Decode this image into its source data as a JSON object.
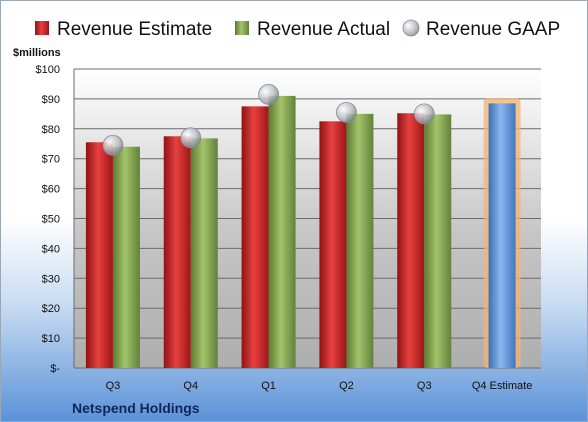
{
  "chart_data": {
    "type": "bar",
    "title": "",
    "unit_label": "$millions",
    "company": "Netspend Holdings",
    "ylim": [
      0,
      100
    ],
    "y_ticks": [
      {
        "value": 0,
        "label": "$-"
      },
      {
        "value": 10,
        "label": "$10"
      },
      {
        "value": 20,
        "label": "$20"
      },
      {
        "value": 30,
        "label": "$30"
      },
      {
        "value": 40,
        "label": "$40"
      },
      {
        "value": 50,
        "label": "$50"
      },
      {
        "value": 60,
        "label": "$60"
      },
      {
        "value": 70,
        "label": "$70"
      },
      {
        "value": 80,
        "label": "$80"
      },
      {
        "value": 90,
        "label": "$90"
      },
      {
        "value": 100,
        "label": "$100"
      }
    ],
    "categories": [
      "Q3",
      "Q4",
      "Q1",
      "Q2",
      "Q3",
      "Q4 Estimate"
    ],
    "grid": true,
    "legend_position": "top",
    "series": [
      {
        "name": "Revenue Estimate",
        "kind": "bar",
        "color": "#d42a2a",
        "values": [
          75.5,
          77.5,
          87.5,
          82.5,
          85.2,
          null
        ]
      },
      {
        "name": "Revenue Actual",
        "kind": "bar",
        "color": "#8db05a",
        "values": [
          74.0,
          76.8,
          91.0,
          85.0,
          84.8,
          null
        ]
      },
      {
        "name": "Revenue GAAP",
        "kind": "marker",
        "color": "#b9bcc3",
        "values": [
          74.5,
          77.0,
          91.5,
          85.5,
          85.0,
          null
        ]
      },
      {
        "name": "",
        "kind": "bar",
        "color": "#6f9fde",
        "highlight": "#f3b470",
        "values": [
          null,
          null,
          null,
          null,
          null,
          88.5
        ]
      }
    ]
  }
}
